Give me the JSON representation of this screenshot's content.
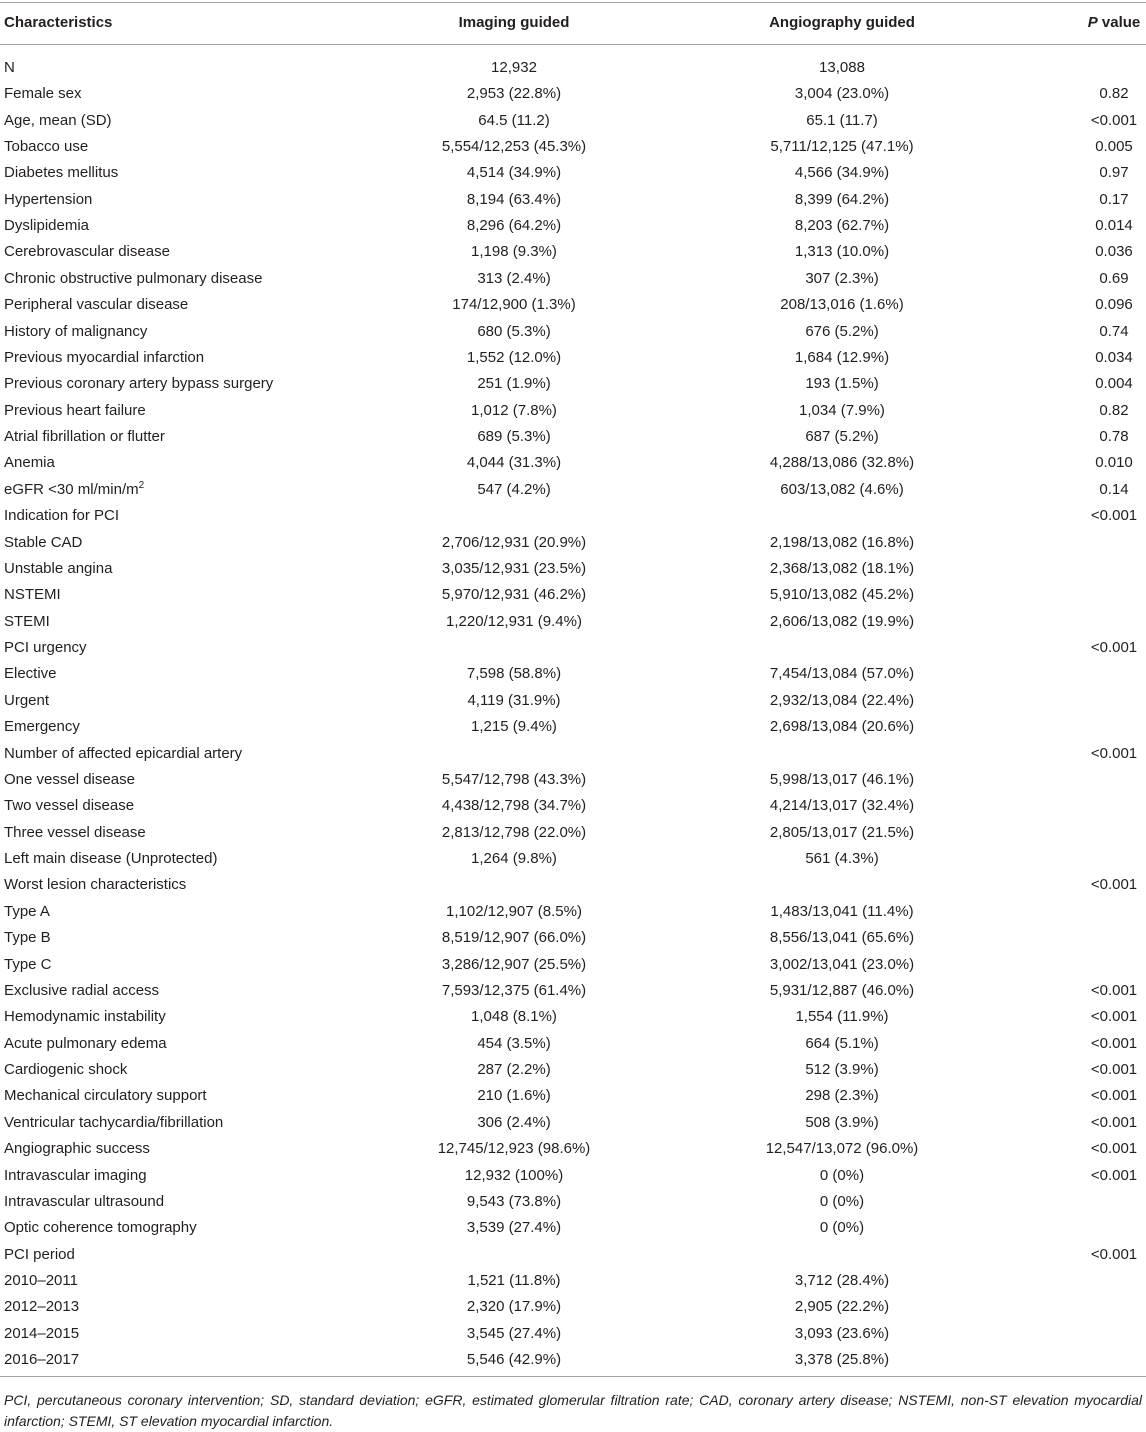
{
  "colors": {
    "text": "#231f20",
    "rule": "#a3a3a3"
  },
  "table": {
    "header": {
      "characteristics": "Characteristics",
      "imaging_guided": "Imaging guided",
      "angiography_guided": "Angiography guided",
      "p_symbol": "P",
      "p_word": "value"
    },
    "rows": [
      {
        "label": "N",
        "imaging": "12,932",
        "angiography": "13,088"
      },
      {
        "label": "Female sex",
        "imaging": "2,953 (22.8%)",
        "angiography": "3,004 (23.0%)",
        "p": "0.82"
      },
      {
        "label": "Age, mean (SD)",
        "imaging": "64.5 (11.2)",
        "angiography": "65.1 (11.7)",
        "p": "<0.001"
      },
      {
        "label": "Tobacco use",
        "imaging": "5,554/12,253 (45.3%)",
        "angiography": "5,711/12,125 (47.1%)",
        "p": "0.005"
      },
      {
        "label": "Diabetes mellitus",
        "imaging": "4,514 (34.9%)",
        "angiography": "4,566 (34.9%)",
        "p": "0.97"
      },
      {
        "label": "Hypertension",
        "imaging": "8,194 (63.4%)",
        "angiography": "8,399 (64.2%)",
        "p": "0.17"
      },
      {
        "label": "Dyslipidemia",
        "imaging": "8,296 (64.2%)",
        "angiography": "8,203 (62.7%)",
        "p": "0.014"
      },
      {
        "label": "Cerebrovascular disease",
        "imaging": "1,198 (9.3%)",
        "angiography": "1,313 (10.0%)",
        "p": "0.036"
      },
      {
        "label": "Chronic obstructive pulmonary disease",
        "imaging": "313 (2.4%)",
        "angiography": "307 (2.3%)",
        "p": "0.69"
      },
      {
        "label": "Peripheral vascular disease",
        "imaging": "174/12,900 (1.3%)",
        "angiography": "208/13,016 (1.6%)",
        "p": "0.096"
      },
      {
        "label": "History of malignancy",
        "imaging": "680 (5.3%)",
        "angiography": "676 (5.2%)",
        "p": "0.74"
      },
      {
        "label": "Previous myocardial infarction",
        "imaging": "1,552 (12.0%)",
        "angiography": "1,684 (12.9%)",
        "p": "0.034"
      },
      {
        "label": "Previous coronary artery bypass surgery",
        "imaging": "251 (1.9%)",
        "angiography": "193 (1.5%)",
        "p": "0.004"
      },
      {
        "label": "Previous heart failure",
        "imaging": "1,012 (7.8%)",
        "angiography": "1,034 (7.9%)",
        "p": "0.82"
      },
      {
        "label": "Atrial fibrillation or flutter",
        "imaging": "689 (5.3%)",
        "angiography": "687 (5.2%)",
        "p": "0.78"
      },
      {
        "label": "Anemia",
        "imaging": "4,044 (31.3%)",
        "angiography": "4,288/13,086 (32.8%)",
        "p": "0.010"
      },
      {
        "label": "eGFR <30 ml/min/m",
        "label_sup": "2",
        "imaging": "547 (4.2%)",
        "angiography": "603/13,082 (4.6%)",
        "p": "0.14"
      },
      {
        "label": "Indication for PCI",
        "p": "<0.001"
      },
      {
        "label": "Stable CAD",
        "imaging": "2,706/12,931 (20.9%)",
        "angiography": "2,198/13,082 (16.8%)"
      },
      {
        "label": "Unstable angina",
        "imaging": "3,035/12,931 (23.5%)",
        "angiography": "2,368/13,082 (18.1%)"
      },
      {
        "label": "NSTEMI",
        "imaging": "5,970/12,931 (46.2%)",
        "angiography": "5,910/13,082 (45.2%)"
      },
      {
        "label": "STEMI",
        "imaging": "1,220/12,931 (9.4%)",
        "angiography": "2,606/13,082 (19.9%)"
      },
      {
        "label": "PCI urgency",
        "p": "<0.001"
      },
      {
        "label": "Elective",
        "imaging": "7,598 (58.8%)",
        "angiography": "7,454/13,084 (57.0%)"
      },
      {
        "label": "Urgent",
        "imaging": "4,119 (31.9%)",
        "angiography": "2,932/13,084 (22.4%)"
      },
      {
        "label": "Emergency",
        "imaging": "1,215 (9.4%)",
        "angiography": "2,698/13,084 (20.6%)"
      },
      {
        "label": "Number of affected epicardial artery",
        "p": "<0.001"
      },
      {
        "label": "One vessel disease",
        "imaging": "5,547/12,798 (43.3%)",
        "angiography": "5,998/13,017 (46.1%)"
      },
      {
        "label": "Two vessel disease",
        "imaging": "4,438/12,798 (34.7%)",
        "angiography": "4,214/13,017 (32.4%)"
      },
      {
        "label": "Three vessel disease",
        "imaging": "2,813/12,798 (22.0%)",
        "angiography": "2,805/13,017 (21.5%)"
      },
      {
        "label": "Left main disease (Unprotected)",
        "imaging": "1,264 (9.8%)",
        "angiography": "561 (4.3%)"
      },
      {
        "label": "Worst lesion characteristics",
        "p": "<0.001"
      },
      {
        "label": "Type A",
        "imaging": "1,102/12,907 (8.5%)",
        "angiography": "1,483/13,041 (11.4%)"
      },
      {
        "label": "Type B",
        "imaging": "8,519/12,907 (66.0%)",
        "angiography": "8,556/13,041 (65.6%)"
      },
      {
        "label": "Type C",
        "imaging": "3,286/12,907 (25.5%)",
        "angiography": "3,002/13,041 (23.0%)"
      },
      {
        "label": "Exclusive radial access",
        "imaging": "7,593/12,375 (61.4%)",
        "angiography": "5,931/12,887 (46.0%)",
        "p": "<0.001"
      },
      {
        "label": "Hemodynamic instability",
        "imaging": "1,048 (8.1%)",
        "angiography": "1,554 (11.9%)",
        "p": "<0.001"
      },
      {
        "label": "Acute pulmonary edema",
        "imaging": "454 (3.5%)",
        "angiography": "664 (5.1%)",
        "p": "<0.001"
      },
      {
        "label": "Cardiogenic shock",
        "imaging": "287 (2.2%)",
        "angiography": "512 (3.9%)",
        "p": "<0.001"
      },
      {
        "label": "Mechanical circulatory support",
        "imaging": "210 (1.6%)",
        "angiography": "298 (2.3%)",
        "p": "<0.001"
      },
      {
        "label": "Ventricular tachycardia/fibrillation",
        "imaging": "306 (2.4%)",
        "angiography": "508 (3.9%)",
        "p": "<0.001"
      },
      {
        "label": "Angiographic success",
        "imaging": "12,745/12,923 (98.6%)",
        "angiography": "12,547/13,072 (96.0%)",
        "p": "<0.001"
      },
      {
        "label": "Intravascular imaging",
        "imaging": "12,932 (100%)",
        "angiography": "0 (0%)",
        "p": "<0.001"
      },
      {
        "label": "Intravascular ultrasound",
        "imaging": "9,543 (73.8%)",
        "angiography": "0 (0%)"
      },
      {
        "label": "Optic coherence tomography",
        "imaging": "3,539 (27.4%)",
        "angiography": "0 (0%)"
      },
      {
        "label": "PCI period",
        "p": "<0.001"
      },
      {
        "label": "2010–2011",
        "imaging": "1,521 (11.8%)",
        "angiography": "3,712 (28.4%)"
      },
      {
        "label": "2012–2013",
        "imaging": "2,320 (17.9%)",
        "angiography": "2,905 (22.2%)"
      },
      {
        "label": "2014–2015",
        "imaging": "3,545 (27.4%)",
        "angiography": "3,093 (23.6%)"
      },
      {
        "label": "2016–2017",
        "imaging": "5,546 (42.9%)",
        "angiography": "3,378 (25.8%)"
      }
    ]
  },
  "footnote": "PCI, percutaneous coronary intervention; SD, standard deviation; eGFR, estimated glomerular filtration rate; CAD, coronary artery disease; NSTEMI, non-ST elevation myocardial infarction; STEMI, ST elevation myocardial infarction."
}
